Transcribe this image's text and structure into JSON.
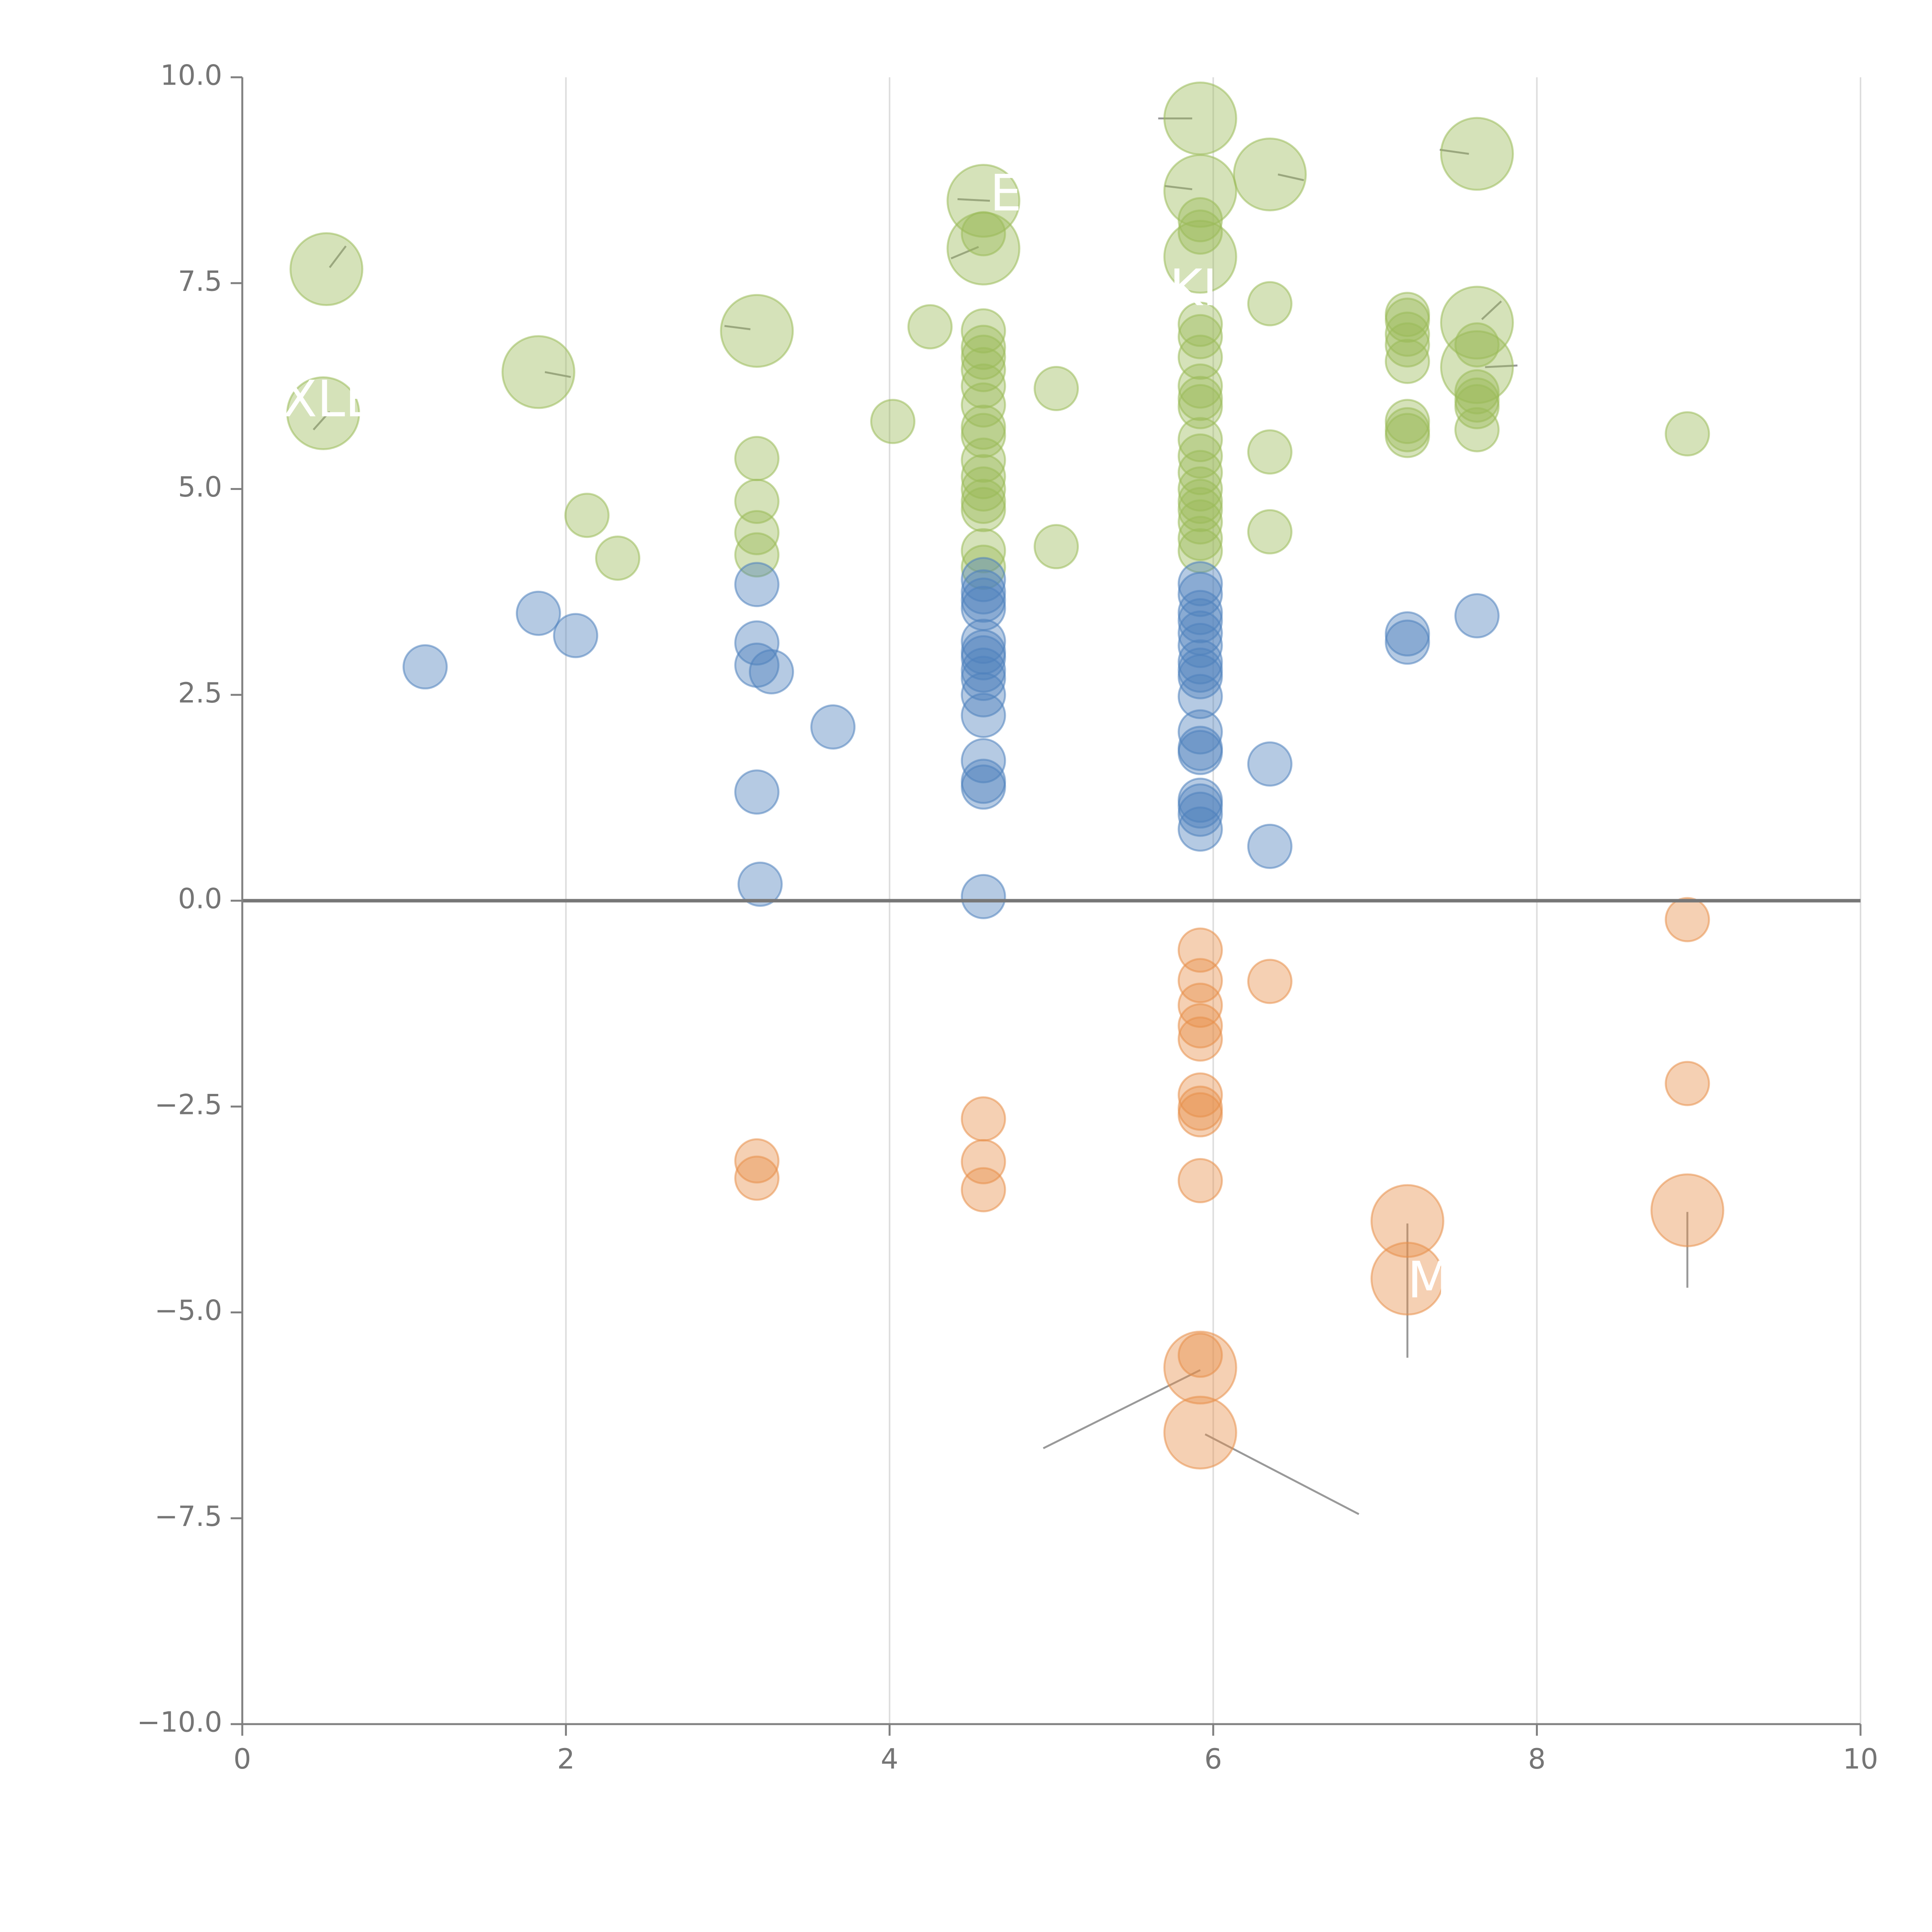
{
  "chart_data": {
    "type": "scatter",
    "title": "",
    "xlabel": "",
    "ylabel": "",
    "xlim": [
      0,
      10
    ],
    "ylim": [
      -10,
      10
    ],
    "x_ticks": [
      0,
      2,
      4,
      6,
      8,
      10
    ],
    "y_ticks": [
      -10,
      -7.5,
      -5,
      -2.5,
      0,
      2.5,
      5,
      7.5,
      10
    ],
    "x_tick_labels": [
      "0",
      "2",
      "4",
      "6",
      "8",
      "10"
    ],
    "y_tick_labels": [
      "−10.0",
      "−7.5",
      "−5.0",
      "−2.5",
      "0.0",
      "2.5",
      "5.0",
      "7.5",
      "10.0"
    ],
    "vertical_grid": true,
    "zero_line": true,
    "colors": {
      "green": "#9bbb59",
      "blue": "#4f81bd",
      "orange": "#e8904a",
      "axis": "#808080",
      "grid": "#dddddd",
      "zero_line": "#777777",
      "label": "#ffffff",
      "leader": "#999999"
    },
    "series": [
      {
        "name": "positive-high",
        "color": "#9bbb59",
        "points": [
          [
            0.52,
            7.67,
            3
          ],
          [
            0.5,
            5.92,
            3
          ],
          [
            1.83,
            6.42,
            3
          ],
          [
            3.18,
            6.92,
            3
          ],
          [
            4.58,
            8.5,
            3
          ],
          [
            4.58,
            7.92,
            3
          ],
          [
            5.92,
            9.5,
            3
          ],
          [
            5.92,
            8.62,
            3
          ],
          [
            5.92,
            7.82,
            3
          ],
          [
            6.35,
            8.82,
            3
          ],
          [
            7.63,
            9.07,
            3
          ],
          [
            7.63,
            7.02,
            3
          ],
          [
            7.63,
            6.48,
            3
          ],
          [
            2.13,
            4.68,
            1
          ],
          [
            2.32,
            4.16,
            1
          ],
          [
            3.18,
            5.37,
            1
          ],
          [
            3.18,
            4.85,
            1
          ],
          [
            3.18,
            4.47,
            1
          ],
          [
            3.18,
            4.2,
            1
          ],
          [
            4.02,
            5.82,
            1
          ],
          [
            4.25,
            6.97,
            1
          ],
          [
            5.03,
            6.22,
            1
          ],
          [
            5.03,
            4.3,
            1
          ],
          [
            4.58,
            8.1,
            1
          ],
          [
            4.58,
            6.92,
            1
          ],
          [
            4.58,
            6.72,
            1
          ],
          [
            4.58,
            6.6,
            1
          ],
          [
            4.58,
            6.45,
            1
          ],
          [
            4.58,
            6.25,
            1
          ],
          [
            4.58,
            6.02,
            1
          ],
          [
            4.58,
            5.75,
            1
          ],
          [
            4.58,
            5.65,
            1
          ],
          [
            4.58,
            5.35,
            1
          ],
          [
            4.58,
            5.15,
            1
          ],
          [
            4.58,
            5.0,
            1
          ],
          [
            4.58,
            4.85,
            1
          ],
          [
            4.58,
            4.75,
            1
          ],
          [
            4.58,
            4.25,
            1
          ],
          [
            4.58,
            4.05,
            1
          ],
          [
            5.92,
            8.27,
            1
          ],
          [
            5.92,
            8.12,
            1
          ],
          [
            5.92,
            7.0,
            1
          ],
          [
            5.92,
            6.85,
            1
          ],
          [
            5.92,
            6.6,
            1
          ],
          [
            5.92,
            6.25,
            1
          ],
          [
            5.92,
            6.1,
            1
          ],
          [
            5.92,
            6.0,
            1
          ],
          [
            5.92,
            5.6,
            1
          ],
          [
            5.92,
            5.4,
            1
          ],
          [
            5.92,
            5.2,
            1
          ],
          [
            5.92,
            5.0,
            1
          ],
          [
            5.92,
            4.85,
            1
          ],
          [
            5.92,
            4.75,
            1
          ],
          [
            5.92,
            4.6,
            1
          ],
          [
            5.92,
            4.4,
            1
          ],
          [
            5.92,
            4.25,
            1
          ],
          [
            6.35,
            7.25,
            1
          ],
          [
            6.35,
            5.45,
            1
          ],
          [
            6.35,
            4.48,
            1
          ],
          [
            7.2,
            7.12,
            1
          ],
          [
            7.2,
            7.05,
            1
          ],
          [
            7.2,
            6.88,
            1
          ],
          [
            7.2,
            6.75,
            1
          ],
          [
            7.2,
            6.55,
            1
          ],
          [
            7.2,
            5.82,
            1
          ],
          [
            7.2,
            5.72,
            1
          ],
          [
            7.2,
            5.65,
            1
          ],
          [
            7.63,
            6.75,
            1
          ],
          [
            7.63,
            6.18,
            1
          ],
          [
            7.63,
            6.08,
            1
          ],
          [
            7.63,
            6.0,
            1
          ],
          [
            7.63,
            5.72,
            1
          ],
          [
            8.93,
            5.67,
            1
          ]
        ]
      },
      {
        "name": "positive-low",
        "color": "#4f81bd",
        "points": [
          [
            1.13,
            2.84,
            1
          ],
          [
            1.83,
            3.49,
            1
          ],
          [
            2.06,
            3.22,
            1
          ],
          [
            3.18,
            3.84,
            1
          ],
          [
            3.18,
            3.13,
            1
          ],
          [
            3.18,
            2.86,
            1
          ],
          [
            3.27,
            2.78,
            1
          ],
          [
            3.18,
            1.32,
            1
          ],
          [
            3.2,
            0.2,
            1
          ],
          [
            3.65,
            2.11,
            1
          ],
          [
            4.58,
            3.9,
            1
          ],
          [
            4.58,
            3.75,
            1
          ],
          [
            4.58,
            3.65,
            1
          ],
          [
            4.58,
            3.55,
            1
          ],
          [
            4.58,
            3.15,
            1
          ],
          [
            4.58,
            3.02,
            1
          ],
          [
            4.58,
            2.95,
            1
          ],
          [
            4.58,
            2.8,
            1
          ],
          [
            4.58,
            2.7,
            1
          ],
          [
            4.58,
            2.5,
            1
          ],
          [
            4.58,
            2.25,
            1
          ],
          [
            4.58,
            1.7,
            1
          ],
          [
            4.58,
            1.45,
            1
          ],
          [
            4.58,
            1.38,
            1
          ],
          [
            4.58,
            0.05,
            1
          ],
          [
            5.92,
            3.85,
            1
          ],
          [
            5.92,
            3.72,
            1
          ],
          [
            5.92,
            3.5,
            1
          ],
          [
            5.92,
            3.4,
            1
          ],
          [
            5.92,
            3.25,
            1
          ],
          [
            5.92,
            3.1,
            1
          ],
          [
            5.92,
            2.9,
            1
          ],
          [
            5.92,
            2.8,
            1
          ],
          [
            5.92,
            2.72,
            1
          ],
          [
            5.92,
            2.48,
            1
          ],
          [
            5.92,
            2.05,
            1
          ],
          [
            5.92,
            1.85,
            1
          ],
          [
            5.92,
            1.8,
            1
          ],
          [
            5.92,
            1.22,
            1
          ],
          [
            5.92,
            1.15,
            1
          ],
          [
            5.92,
            1.05,
            1
          ],
          [
            5.92,
            0.87,
            1
          ],
          [
            6.35,
            1.66,
            1
          ],
          [
            6.35,
            0.66,
            1
          ],
          [
            7.2,
            3.24,
            1
          ],
          [
            7.2,
            3.14,
            1
          ],
          [
            7.63,
            3.46,
            1
          ]
        ]
      },
      {
        "name": "negative",
        "color": "#e8904a",
        "points": [
          [
            3.18,
            -3.16,
            1
          ],
          [
            3.18,
            -3.37,
            1
          ],
          [
            4.58,
            -2.65,
            1
          ],
          [
            4.58,
            -3.17,
            1
          ],
          [
            4.58,
            -3.51,
            1
          ],
          [
            5.92,
            -0.6,
            1
          ],
          [
            5.92,
            -0.97,
            1
          ],
          [
            5.92,
            -1.27,
            1
          ],
          [
            5.92,
            -1.52,
            1
          ],
          [
            5.92,
            -1.68,
            1
          ],
          [
            5.92,
            -2.36,
            1
          ],
          [
            5.92,
            -2.52,
            1
          ],
          [
            5.92,
            -2.6,
            1
          ],
          [
            5.92,
            -3.4,
            1
          ],
          [
            5.92,
            -5.52,
            1
          ],
          [
            6.35,
            -0.98,
            1
          ],
          [
            8.93,
            -0.23,
            1
          ],
          [
            8.93,
            -2.22,
            1
          ],
          [
            5.92,
            -5.67,
            3
          ],
          [
            5.92,
            -6.46,
            3
          ],
          [
            7.2,
            -3.89,
            3
          ],
          [
            7.2,
            -4.59,
            3
          ],
          [
            8.93,
            -3.76,
            3
          ]
        ]
      }
    ],
    "labels": [
      {
        "text": "XLE",
        "x": 0.25,
        "y": 6.05
      },
      {
        "text": "E",
        "x": 4.62,
        "y": 8.55
      },
      {
        "text": "KI",
        "x": 5.73,
        "y": 7.4
      },
      {
        "text": "M",
        "x": 7.2,
        "y": -4.65
      }
    ],
    "leaders": [
      [
        0.54,
        7.69,
        0.64,
        7.95
      ],
      [
        0.54,
        5.94,
        0.44,
        5.72
      ],
      [
        1.87,
        6.42,
        2.03,
        6.36
      ],
      [
        3.14,
        6.94,
        2.98,
        6.98
      ],
      [
        4.62,
        8.5,
        4.42,
        8.52
      ],
      [
        4.55,
        7.94,
        4.38,
        7.8
      ],
      [
        5.87,
        9.5,
        5.66,
        9.5
      ],
      [
        5.87,
        8.64,
        5.7,
        8.68
      ],
      [
        6.4,
        8.82,
        6.56,
        8.75
      ],
      [
        7.58,
        9.07,
        7.4,
        9.12
      ],
      [
        7.66,
        7.06,
        7.78,
        7.28
      ],
      [
        7.68,
        6.48,
        7.88,
        6.5
      ],
      [
        7.2,
        -3.92,
        7.2,
        -5.55
      ],
      [
        8.93,
        -3.78,
        8.93,
        -4.7
      ],
      [
        5.92,
        -5.7,
        4.95,
        -6.65
      ],
      [
        5.95,
        -6.48,
        6.9,
        -7.45
      ]
    ]
  }
}
